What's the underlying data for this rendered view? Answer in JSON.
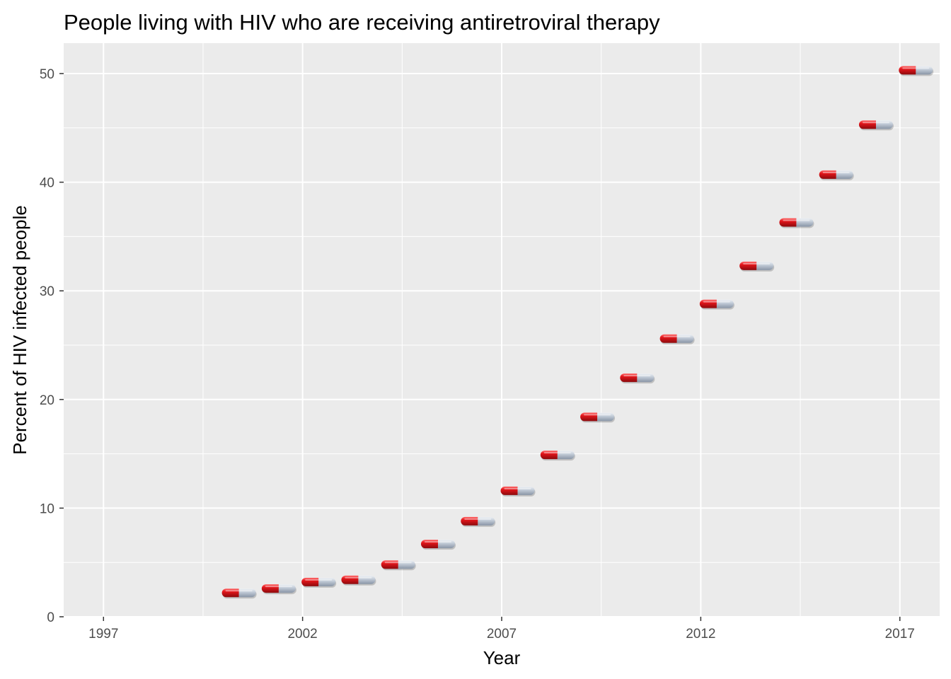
{
  "chart_data": {
    "type": "scatter",
    "title": "People living with HIV who are receiving antiretroviral therapy",
    "xlabel": "Year",
    "ylabel": "Percent of HIV infected people",
    "x": [
      2000,
      2001,
      2002,
      2003,
      2004,
      2005,
      2006,
      2007,
      2008,
      2009,
      2010,
      2011,
      2012,
      2013,
      2014,
      2015,
      2016,
      2017
    ],
    "y": [
      2.2,
      2.6,
      3.2,
      3.4,
      4.8,
      6.7,
      8.8,
      11.6,
      14.9,
      18.4,
      22.0,
      25.6,
      28.8,
      32.3,
      36.3,
      40.7,
      45.3,
      50.3
    ],
    "xlim": [
      1996,
      2018
    ],
    "ylim": [
      0,
      52.8
    ],
    "x_ticks": [
      1997,
      2002,
      2007,
      2012,
      2017
    ],
    "y_ticks": [
      0,
      10,
      20,
      30,
      40,
      50
    ],
    "x_tick_labels": [
      "1997",
      "2002",
      "2007",
      "2012",
      "2017"
    ],
    "y_tick_labels": [
      "0",
      "10",
      "20",
      "30",
      "40",
      "50"
    ],
    "grid": true,
    "marker": "pill-icon",
    "colors": {
      "panel_background": "#ebebeb",
      "grid_major": "#ffffff",
      "pill_red": "#d7191c",
      "pill_grey": "#b8c2cf"
    }
  }
}
